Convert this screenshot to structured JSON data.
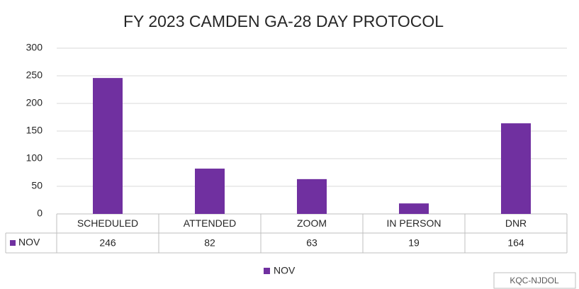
{
  "chart_data": {
    "type": "bar",
    "title": "FY 2023 CAMDEN GA-28 DAY PROTOCOL",
    "categories": [
      "SCHEDULED",
      "ATTENDED",
      "ZOOM",
      "IN PERSON",
      "DNR"
    ],
    "series": [
      {
        "name": "NOV",
        "color": "#7030a0",
        "values": [
          246,
          82,
          63,
          19,
          164
        ]
      }
    ],
    "ylim": [
      0,
      300
    ],
    "yticks": [
      0,
      50,
      100,
      150,
      200,
      250,
      300
    ],
    "grid": true,
    "annotation": "KQC-NJDOL"
  }
}
